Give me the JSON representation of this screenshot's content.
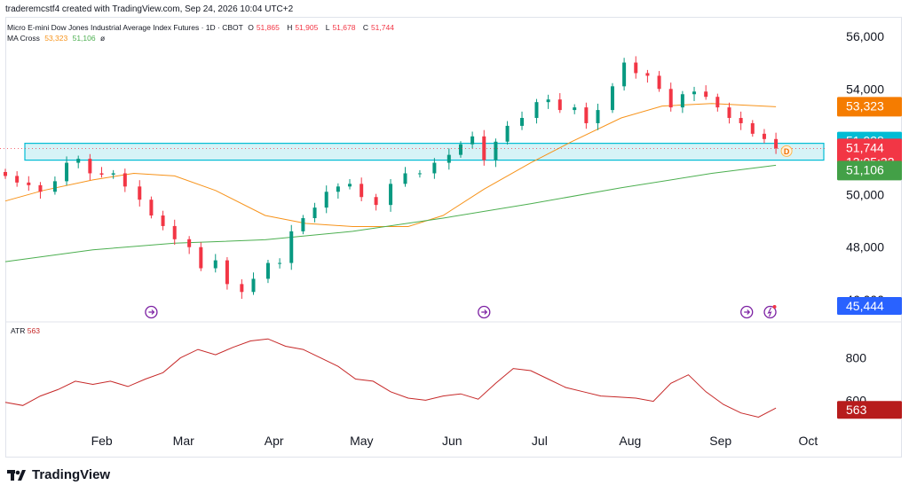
{
  "header": {
    "author_line": "traderemcstf4 created with TradingView.com, Sep 24, 2026 10:04 UTC+2"
  },
  "symbol_legend": {
    "title": "Micro E-mini Dow Jones Industrial Average Index Futures · 1D · CBOT",
    "o_label": "O",
    "o_value": "51,865",
    "h_label": "H",
    "h_value": "51,905",
    "l_label": "L",
    "l_value": "51,678",
    "c_label": "C",
    "c_value": "51,744"
  },
  "ma_legend": {
    "name": "MA Cross",
    "fast_value": "53,323",
    "slow_value": "51,106",
    "settings_icon": "ø"
  },
  "atr_legend": {
    "name": "ATR",
    "value": "563"
  },
  "colors": {
    "up": "#089981",
    "down": "#f23645",
    "ma_fast": "#f7931a",
    "ma_slow": "#4caf50",
    "zone_fill": "#d6f3f7",
    "zone_border": "#00bcd4",
    "atr_line": "#c62828",
    "badge_fast": "#f57c00",
    "badge_zone": "#00bcd4",
    "badge_price": "#f23645",
    "badge_slow": "#43a047",
    "badge_low": "#2962ff",
    "badge_atr": "#b71c1c"
  },
  "price_badges": {
    "ma_fast": "53,323",
    "zone_top": "51,938",
    "last_price": "51,744",
    "countdown": "13:05:32",
    "ma_slow": "51,106",
    "low_marker": "45,444",
    "atr": "563"
  },
  "icons": {
    "event_icon": "arrow-circle-icon",
    "dividend_marker": "D",
    "lightning_icon": "lightning-circle-icon",
    "logo": "tradingview-logo-icon"
  },
  "footer": {
    "brand": "TradingView"
  },
  "chart_data": [
    {
      "type": "candlestick",
      "title": "Micro E-mini Dow Jones Industrial Average Index Futures · 1D · CBOT",
      "xlabel": "",
      "ylabel": "",
      "ylim": [
        45200,
        56700
      ],
      "y_ticks": [
        46000,
        48000,
        50000,
        54000,
        56000
      ],
      "y_tick_labels": [
        "46,000",
        "48,000",
        "50,000",
        "54,000",
        "56,000"
      ],
      "x_tick_labels": [
        "Feb",
        "Mar",
        "Apr",
        "May",
        "Jun",
        "Jul",
        "Aug",
        "Sep",
        "Oct"
      ],
      "x_tick_dates": [
        "2026-02-01",
        "2026-03-01",
        "2026-04-01",
        "2026-05-01",
        "2026-06-01",
        "2026-07-01",
        "2026-08-01",
        "2026-09-01",
        "2026-10-01"
      ],
      "x_range": [
        "2026-01-02",
        "2026-10-10"
      ],
      "grid": false,
      "support_zone": [
        51300,
        51938
      ],
      "series": [
        {
          "name": "Price",
          "kind": "candles",
          "points": [
            {
              "x": "2026-01-02",
              "close": 50700
            },
            {
              "x": "2026-01-06",
              "close": 50450
            },
            {
              "x": "2026-01-10",
              "close": 50350
            },
            {
              "x": "2026-01-14",
              "close": 50100
            },
            {
              "x": "2026-01-19",
              "close": 50500
            },
            {
              "x": "2026-01-23",
              "close": 51200
            },
            {
              "x": "2026-01-27",
              "close": 51350
            },
            {
              "x": "2026-01-31",
              "close": 50800
            },
            {
              "x": "2026-02-04",
              "close": 50750
            },
            {
              "x": "2026-02-08",
              "close": 50800
            },
            {
              "x": "2026-02-12",
              "close": 50300
            },
            {
              "x": "2026-02-17",
              "close": 49800
            },
            {
              "x": "2026-02-21",
              "close": 49200
            },
            {
              "x": "2026-02-25",
              "close": 48800
            },
            {
              "x": "2026-03-01",
              "close": 48300
            },
            {
              "x": "2026-03-06",
              "close": 48000
            },
            {
              "x": "2026-03-10",
              "close": 47200
            },
            {
              "x": "2026-03-15",
              "close": 47500
            },
            {
              "x": "2026-03-19",
              "close": 46600
            },
            {
              "x": "2026-03-24",
              "close": 46300
            },
            {
              "x": "2026-03-28",
              "close": 46800
            },
            {
              "x": "2026-04-02",
              "close": 47400
            },
            {
              "x": "2026-04-06",
              "close": 47400
            },
            {
              "x": "2026-04-10",
              "close": 48600
            },
            {
              "x": "2026-04-14",
              "close": 49100
            },
            {
              "x": "2026-04-18",
              "close": 49500
            },
            {
              "x": "2026-04-22",
              "close": 50100
            },
            {
              "x": "2026-04-26",
              "close": 50300
            },
            {
              "x": "2026-04-30",
              "close": 50400
            },
            {
              "x": "2026-05-04",
              "close": 49900
            },
            {
              "x": "2026-05-09",
              "close": 49600
            },
            {
              "x": "2026-05-14",
              "close": 50400
            },
            {
              "x": "2026-05-19",
              "close": 50800
            },
            {
              "x": "2026-05-24",
              "close": 50800
            },
            {
              "x": "2026-05-29",
              "close": 51200
            },
            {
              "x": "2026-06-03",
              "close": 51500
            },
            {
              "x": "2026-06-07",
              "close": 51900
            },
            {
              "x": "2026-06-11",
              "close": 52200
            },
            {
              "x": "2026-06-15",
              "close": 51300
            },
            {
              "x": "2026-06-19",
              "close": 52000
            },
            {
              "x": "2026-06-23",
              "close": 52600
            },
            {
              "x": "2026-06-28",
              "close": 52900
            },
            {
              "x": "2026-07-03",
              "close": 53500
            },
            {
              "x": "2026-07-07",
              "close": 53600
            },
            {
              "x": "2026-07-11",
              "close": 53200
            },
            {
              "x": "2026-07-16",
              "close": 53300
            },
            {
              "x": "2026-07-20",
              "close": 52700
            },
            {
              "x": "2026-07-24",
              "close": 53200
            },
            {
              "x": "2026-07-29",
              "close": 54100
            },
            {
              "x": "2026-08-02",
              "close": 55000
            },
            {
              "x": "2026-08-06",
              "close": 54600
            },
            {
              "x": "2026-08-10",
              "close": 54500
            },
            {
              "x": "2026-08-14",
              "close": 54000
            },
            {
              "x": "2026-08-18",
              "close": 53300
            },
            {
              "x": "2026-08-22",
              "close": 53800
            },
            {
              "x": "2026-08-26",
              "close": 53900
            },
            {
              "x": "2026-08-30",
              "close": 53700
            },
            {
              "x": "2026-09-03",
              "close": 53300
            },
            {
              "x": "2026-09-07",
              "close": 52900
            },
            {
              "x": "2026-09-11",
              "close": 52700
            },
            {
              "x": "2026-09-15",
              "close": 52300
            },
            {
              "x": "2026-09-19",
              "close": 52100
            },
            {
              "x": "2026-09-23",
              "close": 51744
            }
          ]
        },
        {
          "name": "MA Cross fast",
          "kind": "line",
          "color": "#f7931a",
          "points": [
            {
              "x": "2026-01-02",
              "y": 49750
            },
            {
              "x": "2026-01-15",
              "y": 50150
            },
            {
              "x": "2026-02-01",
              "y": 50550
            },
            {
              "x": "2026-02-15",
              "y": 50800
            },
            {
              "x": "2026-03-01",
              "y": 50700
            },
            {
              "x": "2026-03-15",
              "y": 50150
            },
            {
              "x": "2026-04-01",
              "y": 49200
            },
            {
              "x": "2026-04-15",
              "y": 48900
            },
            {
              "x": "2026-05-01",
              "y": 48780
            },
            {
              "x": "2026-05-20",
              "y": 48780
            },
            {
              "x": "2026-06-01",
              "y": 49200
            },
            {
              "x": "2026-06-15",
              "y": 50200
            },
            {
              "x": "2026-07-01",
              "y": 51200
            },
            {
              "x": "2026-07-15",
              "y": 52000
            },
            {
              "x": "2026-08-01",
              "y": 52900
            },
            {
              "x": "2026-08-15",
              "y": 53350
            },
            {
              "x": "2026-09-01",
              "y": 53450
            },
            {
              "x": "2026-09-23",
              "y": 53323
            }
          ]
        },
        {
          "name": "MA Cross slow",
          "kind": "line",
          "color": "#4caf50",
          "points": [
            {
              "x": "2026-01-02",
              "y": 47450
            },
            {
              "x": "2026-02-01",
              "y": 47900
            },
            {
              "x": "2026-03-01",
              "y": 48150
            },
            {
              "x": "2026-04-01",
              "y": 48280
            },
            {
              "x": "2026-05-01",
              "y": 48600
            },
            {
              "x": "2026-06-01",
              "y": 49100
            },
            {
              "x": "2026-07-01",
              "y": 49650
            },
            {
              "x": "2026-08-01",
              "y": 50250
            },
            {
              "x": "2026-09-01",
              "y": 50800
            },
            {
              "x": "2026-09-23",
              "y": 51106
            }
          ]
        }
      ]
    },
    {
      "type": "line",
      "title": "ATR",
      "xlabel": "",
      "ylabel": "",
      "ylim": [
        480,
        920
      ],
      "y_ticks": [
        800,
        600
      ],
      "y_tick_labels": [
        "800",
        "600"
      ],
      "grid": false,
      "series": [
        {
          "name": "ATR",
          "color": "#c62828",
          "points": [
            {
              "x": "2026-01-02",
              "y": 590
            },
            {
              "x": "2026-01-08",
              "y": 575
            },
            {
              "x": "2026-01-14",
              "y": 620
            },
            {
              "x": "2026-01-20",
              "y": 650
            },
            {
              "x": "2026-01-26",
              "y": 690
            },
            {
              "x": "2026-02-01",
              "y": 675
            },
            {
              "x": "2026-02-07",
              "y": 690
            },
            {
              "x": "2026-02-13",
              "y": 665
            },
            {
              "x": "2026-02-19",
              "y": 700
            },
            {
              "x": "2026-02-25",
              "y": 730
            },
            {
              "x": "2026-03-03",
              "y": 800
            },
            {
              "x": "2026-03-09",
              "y": 840
            },
            {
              "x": "2026-03-15",
              "y": 815
            },
            {
              "x": "2026-03-21",
              "y": 850
            },
            {
              "x": "2026-03-27",
              "y": 880
            },
            {
              "x": "2026-04-02",
              "y": 890
            },
            {
              "x": "2026-04-08",
              "y": 855
            },
            {
              "x": "2026-04-14",
              "y": 840
            },
            {
              "x": "2026-04-20",
              "y": 800
            },
            {
              "x": "2026-04-26",
              "y": 760
            },
            {
              "x": "2026-05-02",
              "y": 700
            },
            {
              "x": "2026-05-08",
              "y": 690
            },
            {
              "x": "2026-05-14",
              "y": 640
            },
            {
              "x": "2026-05-20",
              "y": 610
            },
            {
              "x": "2026-05-26",
              "y": 600
            },
            {
              "x": "2026-06-01",
              "y": 620
            },
            {
              "x": "2026-06-07",
              "y": 630
            },
            {
              "x": "2026-06-13",
              "y": 605
            },
            {
              "x": "2026-06-19",
              "y": 680
            },
            {
              "x": "2026-06-25",
              "y": 750
            },
            {
              "x": "2026-07-01",
              "y": 740
            },
            {
              "x": "2026-07-07",
              "y": 700
            },
            {
              "x": "2026-07-13",
              "y": 660
            },
            {
              "x": "2026-07-19",
              "y": 640
            },
            {
              "x": "2026-07-25",
              "y": 620
            },
            {
              "x": "2026-07-31",
              "y": 615
            },
            {
              "x": "2026-08-06",
              "y": 610
            },
            {
              "x": "2026-08-12",
              "y": 595
            },
            {
              "x": "2026-08-18",
              "y": 680
            },
            {
              "x": "2026-08-24",
              "y": 720
            },
            {
              "x": "2026-08-30",
              "y": 640
            },
            {
              "x": "2026-09-05",
              "y": 580
            },
            {
              "x": "2026-09-11",
              "y": 540
            },
            {
              "x": "2026-09-17",
              "y": 520
            },
            {
              "x": "2026-09-23",
              "y": 563
            }
          ]
        }
      ]
    }
  ]
}
